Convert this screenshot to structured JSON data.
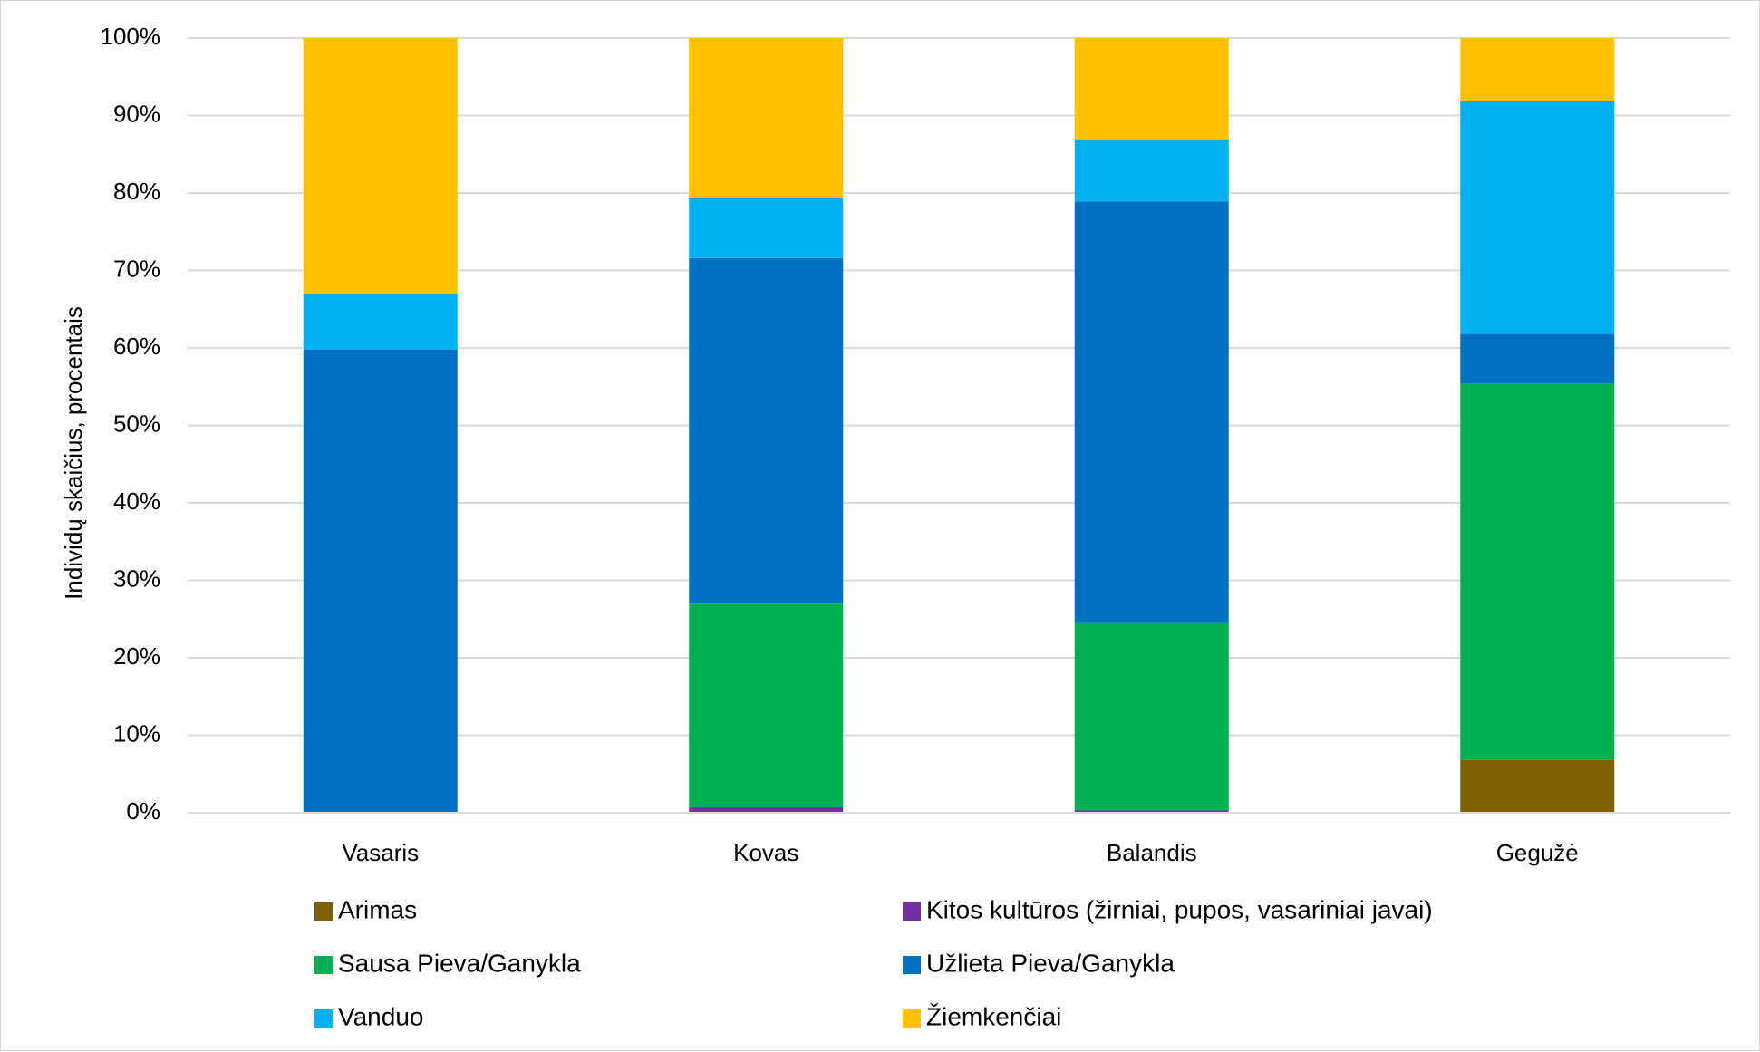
{
  "chart_data": {
    "type": "bar",
    "stacked": true,
    "percent_stacked": true,
    "title": "",
    "xlabel": "",
    "ylabel": "Individų skaičius, procentais",
    "ylim": [
      0,
      100
    ],
    "yticks": [
      "0%",
      "10%",
      "20%",
      "30%",
      "40%",
      "50%",
      "60%",
      "70%",
      "80%",
      "90%",
      "100%"
    ],
    "grid": true,
    "legend_position": "bottom",
    "categories": [
      "Vasaris",
      "Kovas",
      "Balandis",
      "Gegužė"
    ],
    "series": [
      {
        "name": "Arimas",
        "color": "#7F6000",
        "values": [
          0,
          0,
          0,
          6.8
        ]
      },
      {
        "name": "Kitos kultūros (žirniai, pupos, vasariniai javai)",
        "color": "#7030A0",
        "values": [
          0,
          0.7,
          0.3,
          0
        ]
      },
      {
        "name": "Sausa Pieva/Ganykla",
        "color": "#00B050",
        "values": [
          0,
          26.3,
          24.3,
          48.6
        ]
      },
      {
        "name": "Užlieta Pieva/Ganykla",
        "color": "#0070C0",
        "values": [
          59.8,
          44.6,
          54.3,
          6.4
        ]
      },
      {
        "name": "Vanduo",
        "color": "#00B0F0",
        "values": [
          7.2,
          7.7,
          8.0,
          30.1
        ]
      },
      {
        "name": "Žiemkenčiai",
        "color": "#FFC000",
        "values": [
          33.0,
          20.7,
          13.1,
          8.1
        ]
      }
    ]
  }
}
